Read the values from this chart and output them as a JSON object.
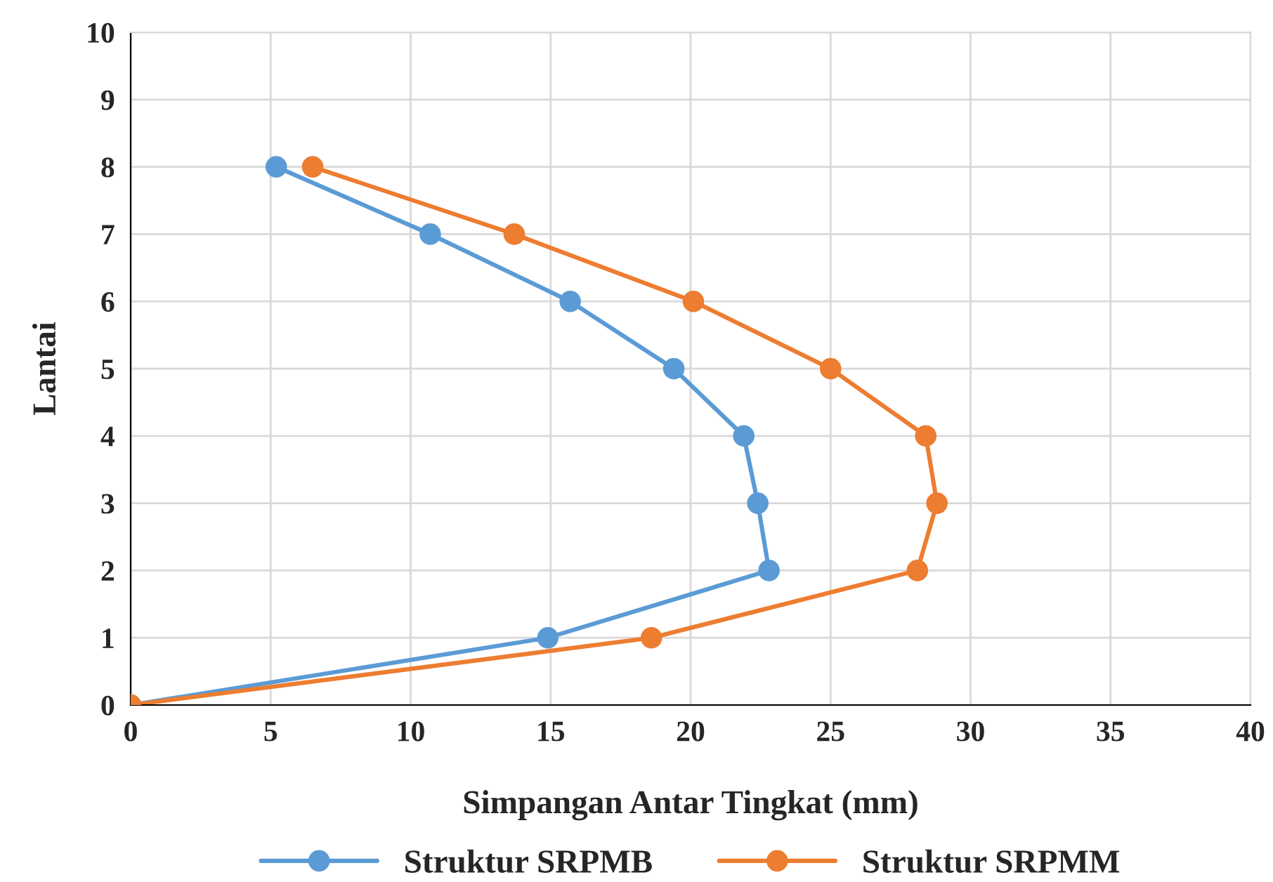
{
  "chart_data": {
    "type": "line",
    "xlabel": "Simpangan Antar Tingkat (mm)",
    "ylabel": "Lantai",
    "xlim": [
      0,
      40
    ],
    "xticks": [
      0,
      5,
      10,
      15,
      20,
      25,
      30,
      35,
      40
    ],
    "ylim": [
      0,
      10
    ],
    "yticks": [
      0,
      1,
      2,
      3,
      4,
      5,
      6,
      7,
      8,
      9,
      10
    ],
    "grid": true,
    "legend": "bottom",
    "marker": "circle",
    "line_style": "solid",
    "series": [
      {
        "name": "Struktur SRPMB",
        "color": "#5b9bd5",
        "x": [
          0,
          14.9,
          22.8,
          22.4,
          21.9,
          19.4,
          15.7,
          10.7,
          5.2
        ],
        "values": [
          0,
          1,
          2,
          3,
          4,
          5,
          6,
          7,
          8
        ]
      },
      {
        "name": "Struktur SRPMM",
        "color": "#ed7d31",
        "x": [
          0,
          18.6,
          28.1,
          28.8,
          28.4,
          25.0,
          20.1,
          13.7,
          6.5
        ],
        "values": [
          0,
          1,
          2,
          3,
          4,
          5,
          6,
          7,
          8
        ]
      }
    ]
  }
}
